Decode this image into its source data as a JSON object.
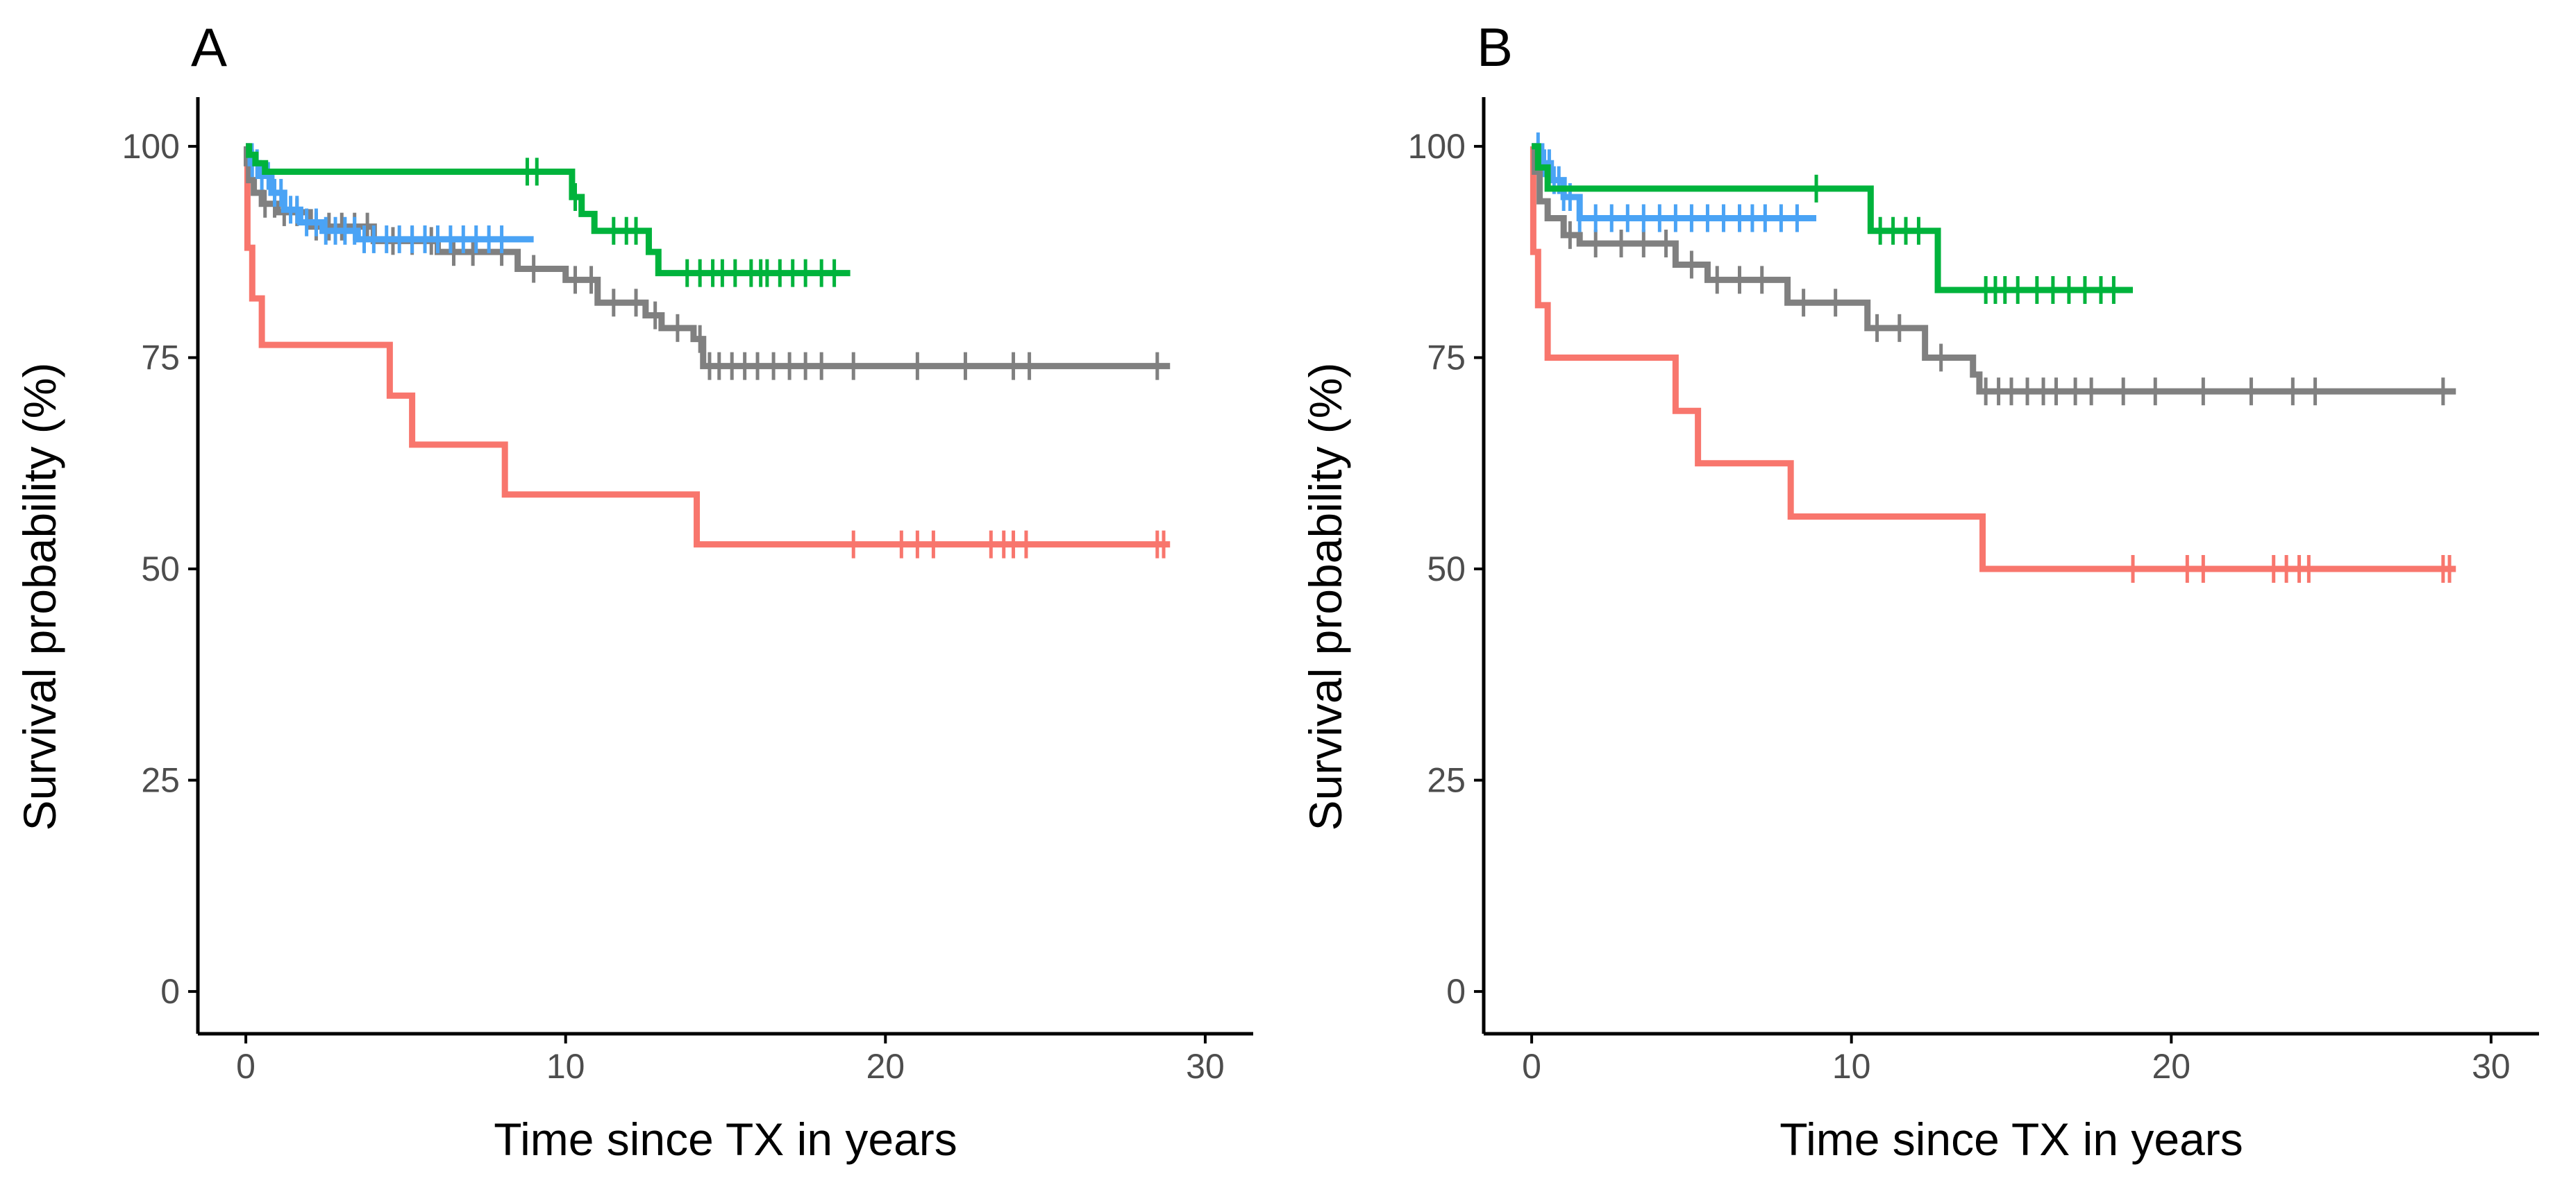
{
  "chart_data": [
    {
      "type": "line",
      "panel_label": "A",
      "xlabel": "Time since TX in years",
      "ylabel": "Survival probability (%)",
      "xlim": [
        -1.5,
        31.5
      ],
      "ylim": [
        -5,
        105
      ],
      "xticks": [
        0,
        10,
        20,
        30
      ],
      "yticks": [
        0,
        25,
        50,
        75,
        100
      ],
      "legend": "none",
      "series": [
        {
          "name": "red",
          "color": "#F8766D",
          "steps": [
            [
              0,
              100
            ],
            [
              0.05,
              88
            ],
            [
              0.2,
              82
            ],
            [
              0.5,
              76.5
            ],
            [
              4.5,
              70.5
            ],
            [
              5.2,
              64.7
            ],
            [
              8.1,
              58.8
            ],
            [
              14.1,
              52.9
            ],
            [
              28.9,
              52.9
            ]
          ],
          "censored": [
            19,
            20.5,
            21,
            21.5,
            23.3,
            23.7,
            24,
            24.4,
            28.5,
            28.7
          ]
        },
        {
          "name": "grey",
          "color": "#808080",
          "steps": [
            [
              0,
              100
            ],
            [
              0.03,
              98
            ],
            [
              0.1,
              96
            ],
            [
              0.25,
              94.5
            ],
            [
              0.5,
              93.2
            ],
            [
              1,
              92.2
            ],
            [
              2,
              90.5
            ],
            [
              4,
              88.8
            ],
            [
              6,
              87.5
            ],
            [
              8.5,
              85.5
            ],
            [
              10,
              84.2
            ],
            [
              11,
              81.5
            ],
            [
              12.5,
              80
            ],
            [
              13,
              78.5
            ],
            [
              14,
              77.2
            ],
            [
              14.3,
              74
            ],
            [
              28.9,
              74
            ]
          ],
          "censored": [
            0.6,
            0.9,
            1.2,
            1.6,
            2.2,
            2.6,
            3,
            3.4,
            3.8,
            4.6,
            5.2,
            5.8,
            6.5,
            7.1,
            8,
            9,
            10.3,
            10.8,
            11.5,
            12.2,
            12.8,
            13.5,
            14.2,
            14.5,
            14.8,
            15.2,
            15.6,
            16,
            16.5,
            17,
            17.5,
            18,
            19,
            21,
            22.5,
            24,
            24.5,
            28.5
          ]
        },
        {
          "name": "blue",
          "color": "#4AA3F5",
          "steps": [
            [
              0,
              100
            ],
            [
              0.15,
              98
            ],
            [
              0.4,
              96.5
            ],
            [
              0.8,
              94.5
            ],
            [
              1.2,
              92.5
            ],
            [
              1.7,
              91
            ],
            [
              2.4,
              90
            ],
            [
              3.5,
              89
            ],
            [
              9,
              89
            ]
          ],
          "censored": [
            0.2,
            0.35,
            0.5,
            0.7,
            0.9,
            1.1,
            1.4,
            1.6,
            1.9,
            2.2,
            2.5,
            2.8,
            3.1,
            3.4,
            3.7,
            4,
            4.4,
            4.8,
            5.2,
            5.6,
            6,
            6.4,
            6.8,
            7.2,
            7.6,
            8
          ]
        },
        {
          "name": "green",
          "color": "#00B33C",
          "steps": [
            [
              0,
              100
            ],
            [
              0.1,
              99
            ],
            [
              0.3,
              98
            ],
            [
              0.6,
              97
            ],
            [
              10,
              97
            ],
            [
              10.2,
              94
            ],
            [
              10.5,
              92
            ],
            [
              10.9,
              90
            ],
            [
              12.6,
              87.5
            ],
            [
              12.9,
              85
            ],
            [
              18.9,
              85
            ]
          ],
          "censored": [
            8.8,
            9.1,
            10.3,
            11.5,
            11.9,
            12.2,
            13.8,
            14.2,
            14.6,
            14.9,
            15.3,
            15.8,
            16.1,
            16.3,
            16.7,
            17.1,
            17.5,
            18,
            18.4
          ]
        }
      ]
    },
    {
      "type": "line",
      "panel_label": "B",
      "xlabel": "Time since TX in years",
      "ylabel": "Survival probability (%)",
      "xlim": [
        -1.5,
        31.5
      ],
      "ylim": [
        -5,
        105
      ],
      "xticks": [
        0,
        10,
        20,
        30
      ],
      "yticks": [
        0,
        25,
        50,
        75,
        100
      ],
      "legend": "none",
      "series": [
        {
          "name": "red",
          "color": "#F8766D",
          "steps": [
            [
              0,
              100
            ],
            [
              0.05,
              87.5
            ],
            [
              0.2,
              81.2
            ],
            [
              0.5,
              75
            ],
            [
              4.5,
              68.7
            ],
            [
              5.2,
              62.5
            ],
            [
              8.1,
              56.2
            ],
            [
              14.1,
              50
            ],
            [
              28.9,
              50
            ]
          ],
          "censored": [
            18.8,
            20.5,
            21,
            23.2,
            23.6,
            24,
            24.3,
            28.5,
            28.7
          ]
        },
        {
          "name": "grey",
          "color": "#808080",
          "steps": [
            [
              0,
              100
            ],
            [
              0.1,
              97
            ],
            [
              0.25,
              93.5
            ],
            [
              0.5,
              91.5
            ],
            [
              1,
              89.5
            ],
            [
              1.5,
              88.5
            ],
            [
              4.5,
              86
            ],
            [
              5.5,
              84.2
            ],
            [
              8,
              81.5
            ],
            [
              10.5,
              78.5
            ],
            [
              12.3,
              75
            ],
            [
              13.8,
              73
            ],
            [
              14,
              71
            ],
            [
              28.9,
              71
            ]
          ],
          "censored": [
            1.2,
            2,
            2.8,
            3.5,
            4.2,
            5,
            5.8,
            6.5,
            7.2,
            8.5,
            9.5,
            10.8,
            11.5,
            12.8,
            14.2,
            14.6,
            15,
            15.5,
            16,
            16.4,
            17,
            17.5,
            18.5,
            19.5,
            21,
            22.5,
            23.8,
            24.5,
            28.5
          ]
        },
        {
          "name": "blue",
          "color": "#4AA3F5",
          "steps": [
            [
              0,
              100
            ],
            [
              0.3,
              98
            ],
            [
              0.6,
              96
            ],
            [
              1,
              94
            ],
            [
              1.5,
              91.5
            ],
            [
              8.9,
              91.5
            ]
          ],
          "censored": [
            0.2,
            0.4,
            0.55,
            0.7,
            0.85,
            1,
            1.2,
            1.5,
            2,
            2.5,
            3,
            3.5,
            4,
            4.5,
            5,
            5.5,
            6,
            6.5,
            6.9,
            7.3,
            7.8,
            8.3
          ]
        },
        {
          "name": "green",
          "color": "#00B33C",
          "steps": [
            [
              0,
              100
            ],
            [
              0.2,
              97.5
            ],
            [
              0.5,
              95
            ],
            [
              10.5,
              95
            ],
            [
              10.6,
              90
            ],
            [
              12.6,
              90
            ],
            [
              12.7,
              83
            ],
            [
              18.8,
              83
            ]
          ],
          "censored": [
            8.9,
            10.9,
            11.3,
            11.7,
            12.1,
            14.2,
            14.5,
            14.8,
            15.2,
            15.8,
            16.3,
            16.8,
            17.3,
            17.8,
            18.2
          ]
        }
      ]
    }
  ]
}
